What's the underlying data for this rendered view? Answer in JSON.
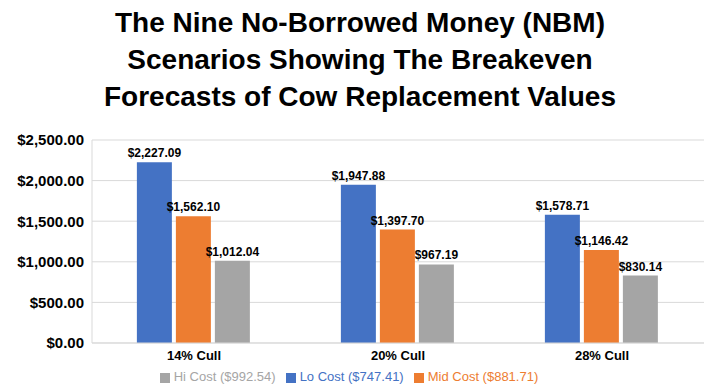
{
  "chart_data": {
    "type": "bar",
    "title": "The Nine No-Borrowed Money (NBM) Scenarios Showing The Breakeven Forecasts of Cow Replacement Values",
    "categories": [
      "14% Cull",
      "20% Cull",
      "28% Cull"
    ],
    "series": [
      {
        "name": "Lo Cost ($747.41)",
        "color": "#4472c4",
        "values": [
          2227.09,
          1947.88,
          1578.71
        ],
        "value_labels": [
          "$2,227.09",
          "$1,947.88",
          "$1,578.71"
        ]
      },
      {
        "name": "Mid Cost ($881.71)",
        "color": "#ed7d31",
        "values": [
          1562.1,
          1397.7,
          1146.42
        ],
        "value_labels": [
          "$1,562.10",
          "$1,397.70",
          "$1,146.42"
        ]
      },
      {
        "name": "Hi Cost ($992.54)",
        "color": "#a5a5a5",
        "values": [
          1012.04,
          967.19,
          830.14
        ],
        "value_labels": [
          "$1,012.04",
          "$967.19",
          "$830.14"
        ]
      }
    ],
    "ylim": [
      0,
      2500
    ],
    "yticks": [
      {
        "value": 0,
        "label": "$0.00"
      },
      {
        "value": 500,
        "label": "$500.00"
      },
      {
        "value": 1000,
        "label": "$1,000.00"
      },
      {
        "value": 1500,
        "label": "$1,500.00"
      },
      {
        "value": 2000,
        "label": "$2,000.00"
      },
      {
        "value": 2500,
        "label": "$2,500.00"
      }
    ],
    "grid": true,
    "legend": "bottom",
    "data_labels": true
  }
}
